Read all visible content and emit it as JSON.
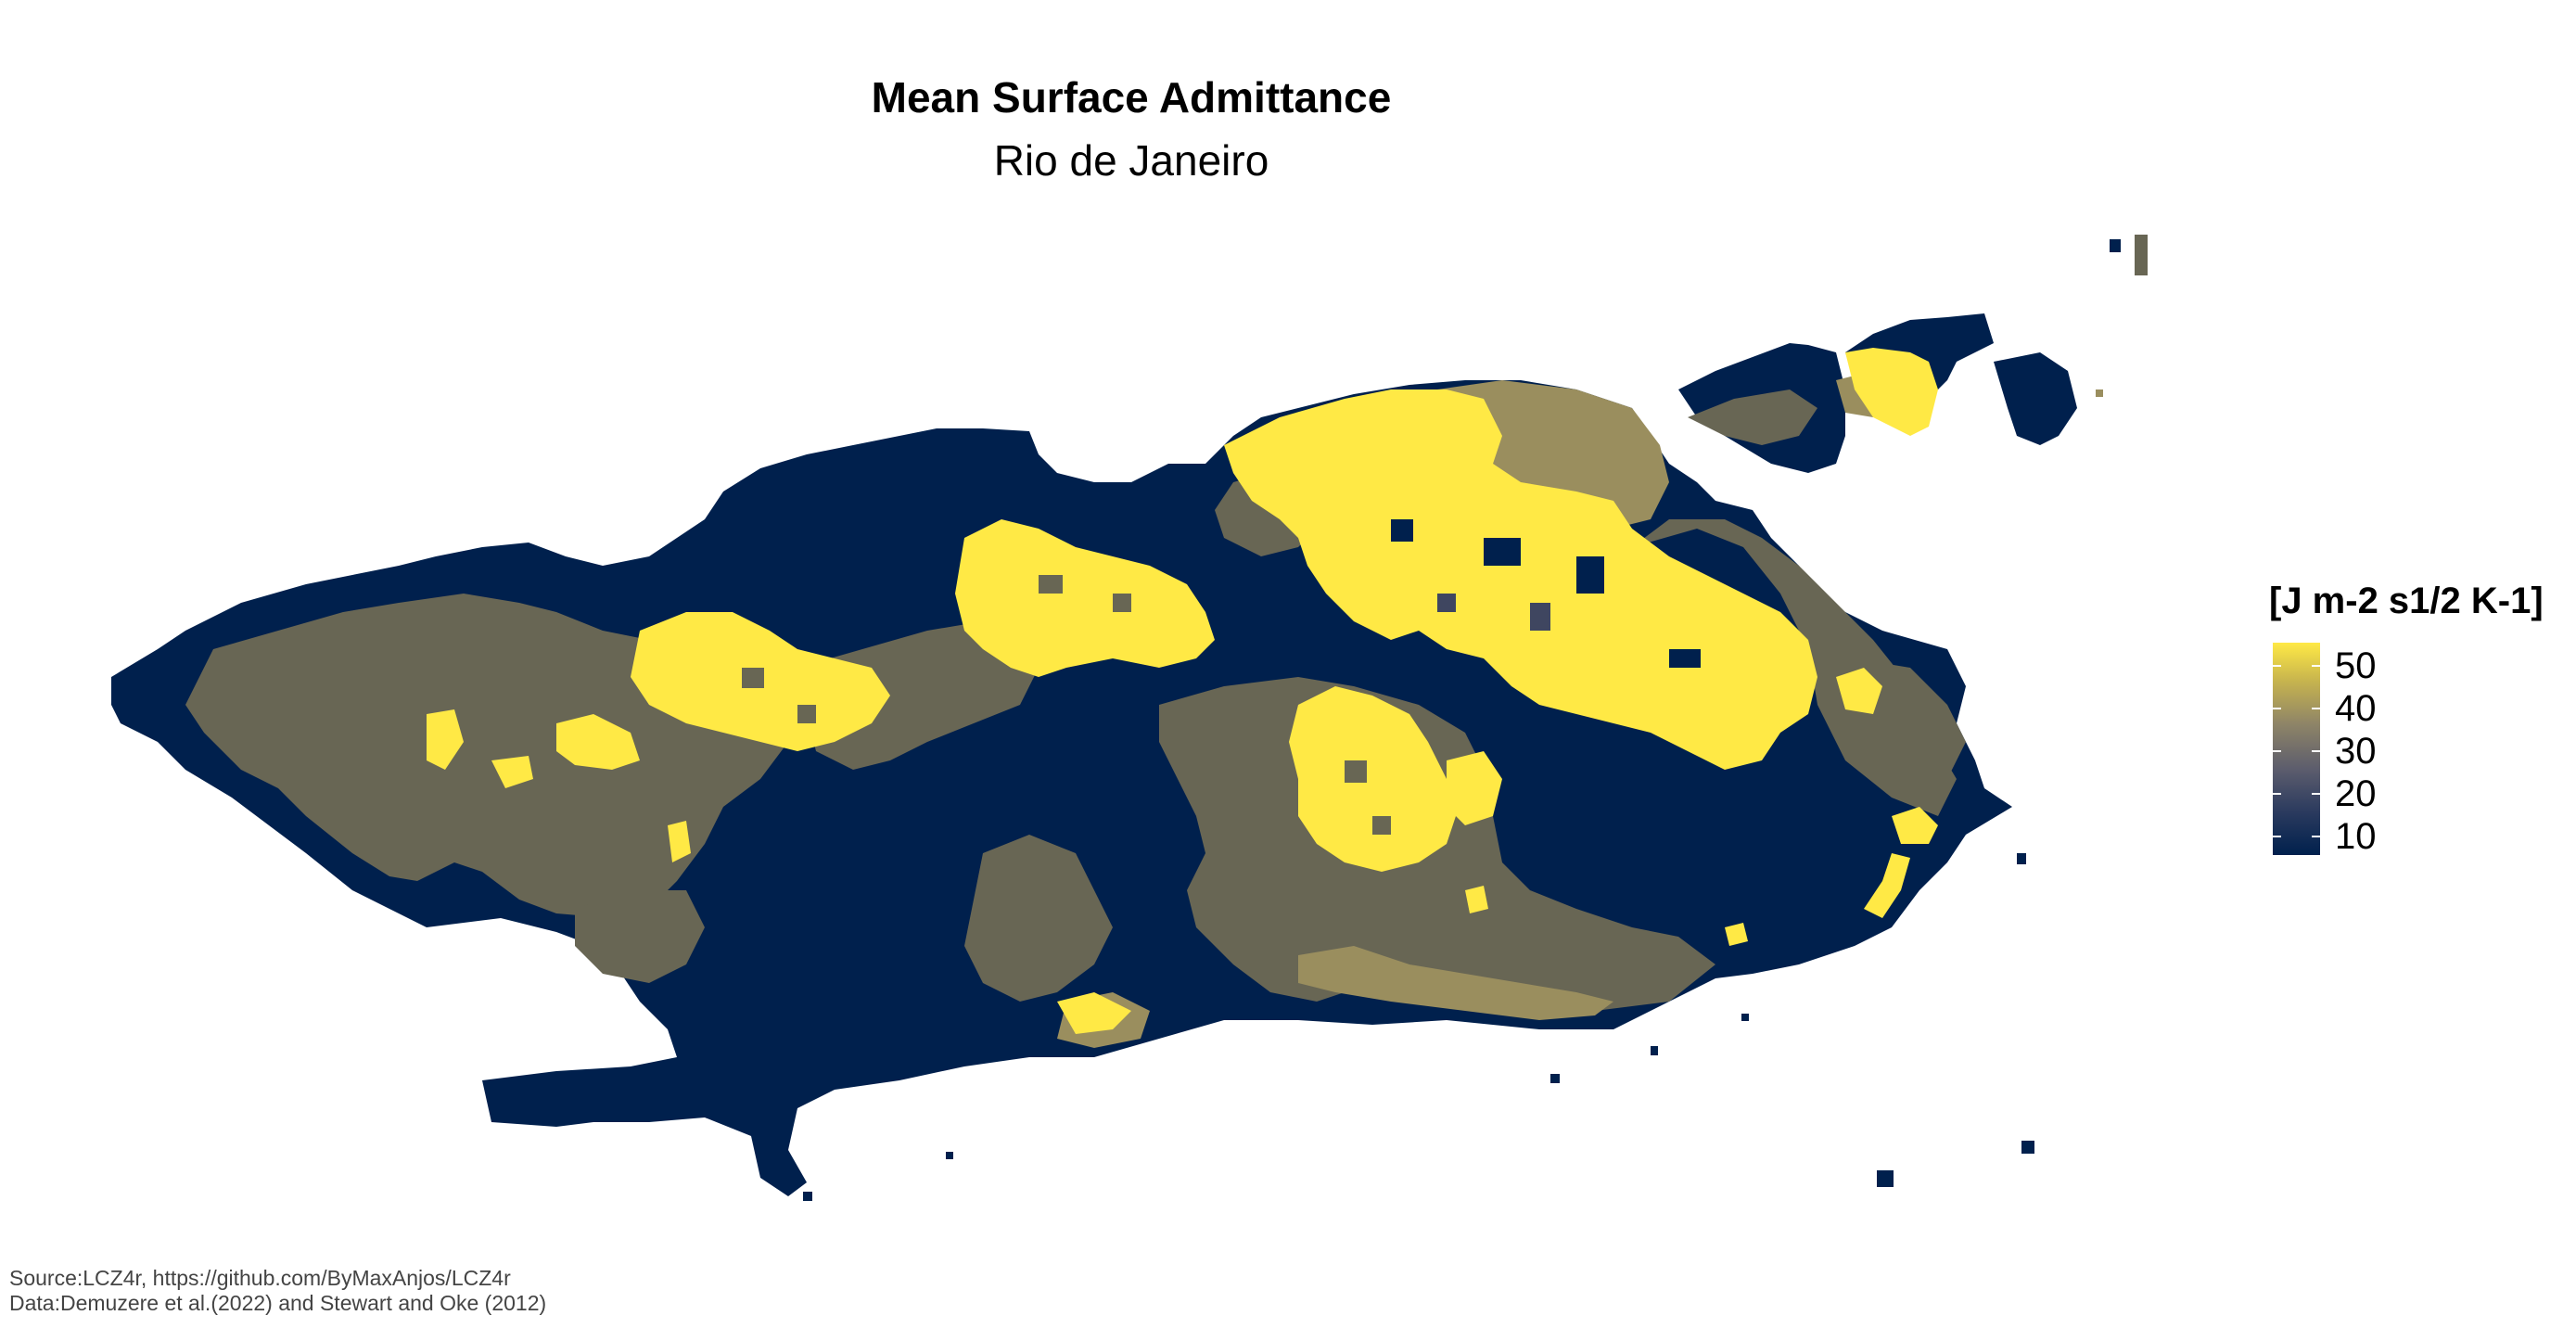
{
  "title": "Mean Surface Admittance",
  "subtitle": "Rio de Janeiro",
  "legend": {
    "title": "[J m-2 s1/2 K-1]",
    "ticks": [
      "50",
      "40",
      "30",
      "20",
      "10"
    ],
    "colors": {
      "low": "#00204d",
      "mid_low": "#5b5c6d",
      "mid": "#8f8567",
      "high": "#ffe945"
    }
  },
  "caption": {
    "source": "Source:LCZ4r, https://github.com/ByMaxAnjos/LCZ4r",
    "data": "Data:Demuzere et al.(2022) and Stewart and Oke (2012)"
  },
  "map_colors": {
    "navy": "#00204d",
    "gray": "#686654",
    "olive": "#9a8e5e",
    "yellow": "#ffe945",
    "darkgray": "#3f4660"
  }
}
